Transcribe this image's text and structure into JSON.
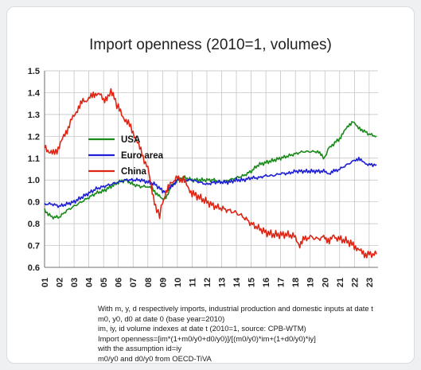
{
  "chart_data": {
    "type": "line",
    "title": "Import openness (2010=1, volumes)",
    "xlabel": "",
    "ylabel": "",
    "ylim": [
      0.6,
      1.5
    ],
    "y_ticks": [
      "0.6",
      "0.7",
      "0.8",
      "0.9",
      "1.0",
      "1.1",
      "1.2",
      "1.3",
      "1.4",
      "1.5"
    ],
    "x_ticks": [
      "01",
      "02",
      "03",
      "04",
      "05",
      "06",
      "07",
      "08",
      "09",
      "10",
      "11",
      "12",
      "13",
      "14",
      "15",
      "16",
      "17",
      "18",
      "19",
      "20",
      "21",
      "22",
      "23"
    ],
    "xlim": [
      2001,
      2023.6
    ],
    "grid": true,
    "legend_position": "upper-left inside plot",
    "series": [
      {
        "name": "USA",
        "color": "#1a8a1a",
        "points": [
          [
            2001.0,
            0.86
          ],
          [
            2001.5,
            0.83
          ],
          [
            2002.0,
            0.83
          ],
          [
            2002.5,
            0.86
          ],
          [
            2003.0,
            0.88
          ],
          [
            2003.5,
            0.9
          ],
          [
            2004.0,
            0.92
          ],
          [
            2004.5,
            0.94
          ],
          [
            2005.0,
            0.95
          ],
          [
            2005.5,
            0.97
          ],
          [
            2006.0,
            0.99
          ],
          [
            2006.5,
            1.0
          ],
          [
            2007.0,
            0.98
          ],
          [
            2007.5,
            0.97
          ],
          [
            2008.0,
            0.97
          ],
          [
            2008.3,
            0.96
          ],
          [
            2008.7,
            0.93
          ],
          [
            2009.0,
            0.91
          ],
          [
            2009.3,
            0.93
          ],
          [
            2009.6,
            0.97
          ],
          [
            2010.0,
            1.0
          ],
          [
            2010.5,
            1.01
          ],
          [
            2011.0,
            1.0
          ],
          [
            2011.5,
            1.0
          ],
          [
            2012.0,
            1.0
          ],
          [
            2012.5,
            1.0
          ],
          [
            2013.0,
            0.99
          ],
          [
            2013.5,
            1.0
          ],
          [
            2014.0,
            1.01
          ],
          [
            2014.5,
            1.02
          ],
          [
            2015.0,
            1.04
          ],
          [
            2015.5,
            1.07
          ],
          [
            2016.0,
            1.08
          ],
          [
            2016.5,
            1.09
          ],
          [
            2017.0,
            1.1
          ],
          [
            2017.5,
            1.11
          ],
          [
            2018.0,
            1.12
          ],
          [
            2018.5,
            1.13
          ],
          [
            2019.0,
            1.13
          ],
          [
            2019.5,
            1.13
          ],
          [
            2019.8,
            1.11
          ],
          [
            2020.0,
            1.1
          ],
          [
            2020.2,
            1.14
          ],
          [
            2020.5,
            1.16
          ],
          [
            2021.0,
            1.19
          ],
          [
            2021.3,
            1.22
          ],
          [
            2021.6,
            1.25
          ],
          [
            2021.9,
            1.27
          ],
          [
            2022.2,
            1.24
          ],
          [
            2022.5,
            1.23
          ],
          [
            2023.0,
            1.21
          ],
          [
            2023.5,
            1.2
          ]
        ]
      },
      {
        "name": "Euro area",
        "color": "#1f1fd6",
        "points": [
          [
            2001.0,
            0.89
          ],
          [
            2001.5,
            0.89
          ],
          [
            2002.0,
            0.88
          ],
          [
            2002.5,
            0.89
          ],
          [
            2003.0,
            0.9
          ],
          [
            2003.5,
            0.92
          ],
          [
            2004.0,
            0.94
          ],
          [
            2004.5,
            0.96
          ],
          [
            2005.0,
            0.97
          ],
          [
            2005.5,
            0.98
          ],
          [
            2006.0,
            0.99
          ],
          [
            2006.5,
            1.0
          ],
          [
            2007.0,
            1.0
          ],
          [
            2007.5,
            1.0
          ],
          [
            2008.0,
            0.99
          ],
          [
            2008.5,
            0.98
          ],
          [
            2009.0,
            0.95
          ],
          [
            2009.3,
            0.95
          ],
          [
            2009.6,
            0.97
          ],
          [
            2010.0,
            1.0
          ],
          [
            2010.5,
            1.0
          ],
          [
            2011.0,
            1.0
          ],
          [
            2011.5,
            0.99
          ],
          [
            2012.0,
            0.98
          ],
          [
            2012.5,
            0.99
          ],
          [
            2013.0,
            0.99
          ],
          [
            2013.5,
            0.99
          ],
          [
            2014.0,
            1.0
          ],
          [
            2014.5,
            1.0
          ],
          [
            2015.0,
            1.01
          ],
          [
            2015.5,
            1.01
          ],
          [
            2016.0,
            1.02
          ],
          [
            2016.5,
            1.02
          ],
          [
            2017.0,
            1.03
          ],
          [
            2017.5,
            1.03
          ],
          [
            2018.0,
            1.04
          ],
          [
            2018.5,
            1.04
          ],
          [
            2019.0,
            1.04
          ],
          [
            2019.5,
            1.04
          ],
          [
            2020.0,
            1.04
          ],
          [
            2020.3,
            1.03
          ],
          [
            2020.6,
            1.04
          ],
          [
            2021.0,
            1.05
          ],
          [
            2021.5,
            1.07
          ],
          [
            2022.0,
            1.09
          ],
          [
            2022.3,
            1.1
          ],
          [
            2022.6,
            1.08
          ],
          [
            2023.0,
            1.07
          ],
          [
            2023.5,
            1.07
          ]
        ]
      },
      {
        "name": "China",
        "color": "#e02414",
        "points": [
          [
            2001.0,
            1.16
          ],
          [
            2001.3,
            1.13
          ],
          [
            2001.6,
            1.12
          ],
          [
            2002.0,
            1.15
          ],
          [
            2002.3,
            1.2
          ],
          [
            2002.6,
            1.24
          ],
          [
            2003.0,
            1.3
          ],
          [
            2003.3,
            1.33
          ],
          [
            2003.6,
            1.36
          ],
          [
            2004.0,
            1.37
          ],
          [
            2004.3,
            1.39
          ],
          [
            2004.6,
            1.4
          ],
          [
            2005.0,
            1.37
          ],
          [
            2005.3,
            1.38
          ],
          [
            2005.5,
            1.41
          ],
          [
            2005.8,
            1.36
          ],
          [
            2006.0,
            1.33
          ],
          [
            2006.3,
            1.29
          ],
          [
            2006.6,
            1.27
          ],
          [
            2007.0,
            1.22
          ],
          [
            2007.3,
            1.17
          ],
          [
            2007.6,
            1.12
          ],
          [
            2008.0,
            1.05
          ],
          [
            2008.3,
            0.95
          ],
          [
            2008.6,
            0.86
          ],
          [
            2008.8,
            0.84
          ],
          [
            2009.0,
            0.9
          ],
          [
            2009.3,
            0.95
          ],
          [
            2009.6,
            0.99
          ],
          [
            2010.0,
            1.01
          ],
          [
            2010.4,
            1.0
          ],
          [
            2010.7,
            0.97
          ],
          [
            2011.0,
            0.94
          ],
          [
            2011.5,
            0.92
          ],
          [
            2012.0,
            0.9
          ],
          [
            2012.5,
            0.88
          ],
          [
            2013.0,
            0.87
          ],
          [
            2013.5,
            0.86
          ],
          [
            2014.0,
            0.85
          ],
          [
            2014.5,
            0.83
          ],
          [
            2015.0,
            0.8
          ],
          [
            2015.5,
            0.78
          ],
          [
            2016.0,
            0.76
          ],
          [
            2016.5,
            0.75
          ],
          [
            2017.0,
            0.75
          ],
          [
            2017.5,
            0.75
          ],
          [
            2018.0,
            0.74
          ],
          [
            2018.3,
            0.7
          ],
          [
            2018.6,
            0.73
          ],
          [
            2019.0,
            0.74
          ],
          [
            2019.5,
            0.73
          ],
          [
            2020.0,
            0.74
          ],
          [
            2020.3,
            0.72
          ],
          [
            2020.6,
            0.74
          ],
          [
            2021.0,
            0.73
          ],
          [
            2021.5,
            0.72
          ],
          [
            2022.0,
            0.7
          ],
          [
            2022.3,
            0.68
          ],
          [
            2022.6,
            0.66
          ],
          [
            2023.0,
            0.66
          ],
          [
            2023.5,
            0.66
          ]
        ]
      }
    ]
  },
  "notes": [
    "With m, y, d respectively imports, industrial production and domestic inputs at date t",
    "m0, y0, d0 at date 0 (base year=2010)",
    "im, iy, id volume indexes at date t (2010=1, source: CPB-WTM)",
    "Import openness=[im*(1+m0/y0+d0/y0)]/[(m0/y0)*im+(1+d0/y0)*iy]",
    "with the assumption id=iy",
    "m0/y0 and d0/y0 from OECD-TiVA"
  ]
}
